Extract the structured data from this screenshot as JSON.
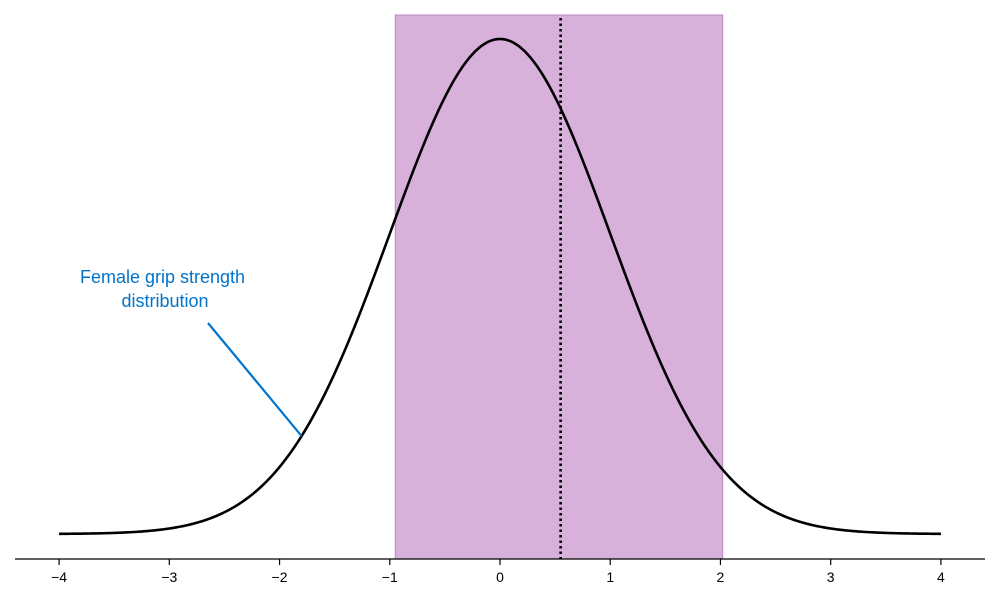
{
  "chart_data": {
    "type": "line",
    "title": "",
    "xlabel": "",
    "ylabel": "",
    "xlim": [
      -4.4,
      4.4
    ],
    "x_ticks": [
      -4,
      -3,
      -2,
      -1,
      0,
      1,
      2,
      3,
      4
    ],
    "x_tick_labels": [
      "−4",
      "−3",
      "−2",
      "−1",
      "0",
      "1",
      "2",
      "3",
      "4"
    ],
    "grid": false,
    "series": [
      {
        "kind": "normal-density",
        "mean": 0,
        "sd": 1,
        "x_range": [
          -4,
          4
        ],
        "color": "#000000"
      }
    ],
    "shaded_region": {
      "x_start": -0.95,
      "x_end": 2.02,
      "color": "#d8b1da",
      "edge_color": "#b98bc0"
    },
    "reference_line": {
      "x": 0.55,
      "style": "dotted",
      "color": "#000000"
    },
    "annotation": {
      "lines": [
        "Female grip strength",
        "distribution"
      ],
      "color": "#0074cc",
      "points_to_x": -1.8
    }
  }
}
